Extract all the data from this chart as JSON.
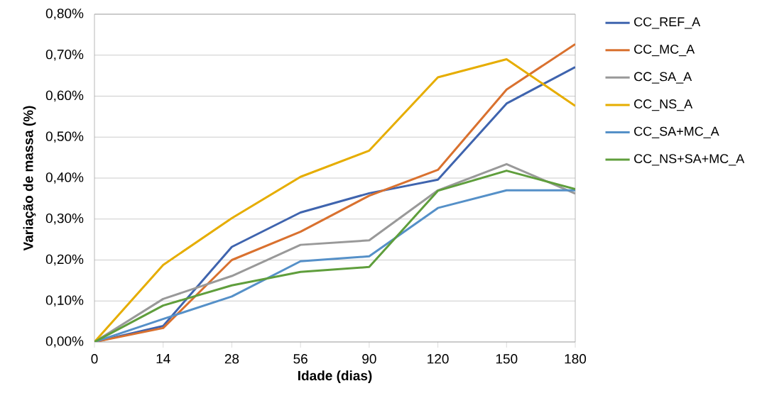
{
  "chart_data": {
    "type": "line",
    "xlabel": "Idade (dias)",
    "ylabel": "Variação de massa (%)",
    "categories": [
      "0",
      "14",
      "28",
      "56",
      "90",
      "120",
      "150",
      "180"
    ],
    "series": [
      {
        "name": "CC_REF_A",
        "color": "#3f64ae",
        "values": [
          0,
          0.039,
          0.232,
          0.316,
          0.363,
          0.396,
          0.582,
          0.671
        ]
      },
      {
        "name": "CC_MC_A",
        "color": "#d9712f",
        "values": [
          0,
          0.034,
          0.2,
          0.269,
          0.357,
          0.42,
          0.616,
          0.727
        ]
      },
      {
        "name": "CC_SA_A",
        "color": "#999999",
        "values": [
          0,
          0.105,
          0.161,
          0.237,
          0.248,
          0.37,
          0.434,
          0.362
        ]
      },
      {
        "name": "CC_NS_A",
        "color": "#e6ad00",
        "values": [
          0,
          0.188,
          0.302,
          0.403,
          0.467,
          0.646,
          0.69,
          0.576
        ]
      },
      {
        "name": "CC_SA+MC_A",
        "color": "#5590c8",
        "values": [
          0,
          0.056,
          0.111,
          0.197,
          0.209,
          0.327,
          0.37,
          0.37
        ]
      },
      {
        "name": "CC_NS+SA+MC_A",
        "color": "#5f9e3c",
        "values": [
          0,
          0.089,
          0.138,
          0.171,
          0.183,
          0.369,
          0.418,
          0.373
        ]
      }
    ],
    "ylim": [
      0,
      0.8
    ],
    "yticks": [
      {
        "value": 0,
        "label": "0,00%"
      },
      {
        "value": 0.1,
        "label": "0,10%"
      },
      {
        "value": 0.2,
        "label": "0,20%"
      },
      {
        "value": 0.3,
        "label": "0,30%"
      },
      {
        "value": 0.4,
        "label": "0,40%"
      },
      {
        "value": 0.5,
        "label": "0,50%"
      },
      {
        "value": 0.6,
        "label": "0,60%"
      },
      {
        "value": 0.7,
        "label": "0,70%"
      },
      {
        "value": 0.8,
        "label": "0,80%"
      }
    ],
    "grid": "y",
    "legend": "right",
    "marker": "none",
    "line_style": "solid"
  }
}
